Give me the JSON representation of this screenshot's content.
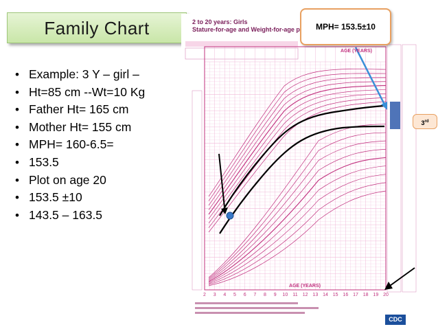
{
  "title": "Family  Chart",
  "bullets": [
    "Example: 3 Y – girl –",
    "Ht=85 cm --Wt=10 Kg",
    "Father Ht= 165 cm",
    "Mother Ht= 155 cm",
    "MPH= 160-6.5=",
    "153.5",
    "Plot on age 20",
    "153.5 ±10",
    "143.5 – 163.5"
  ],
  "mph_callout": "MPH= 153.5±10",
  "percentile_label": "3",
  "percentile_suffix": "rd",
  "chart": {
    "heading_line1": "2 to 20 years: Girls",
    "heading_line2": "Stature-for-age and Weight-for-age percentiles",
    "age_axis_label": "AGE (YEARS)",
    "ages": [
      "2",
      "3",
      "4",
      "5",
      "6",
      "7",
      "8",
      "9",
      "10",
      "11",
      "12",
      "13",
      "14",
      "15",
      "16",
      "17",
      "18",
      "19",
      "20"
    ],
    "logo_text": "CDC",
    "colors": {
      "curve": "#c0307e",
      "grid": "#f0b8d8",
      "annotation": "#000000",
      "arrow_blue": "#3a8fd8",
      "bar_blue": "#4f74b8",
      "point": "#3a78c8"
    }
  }
}
